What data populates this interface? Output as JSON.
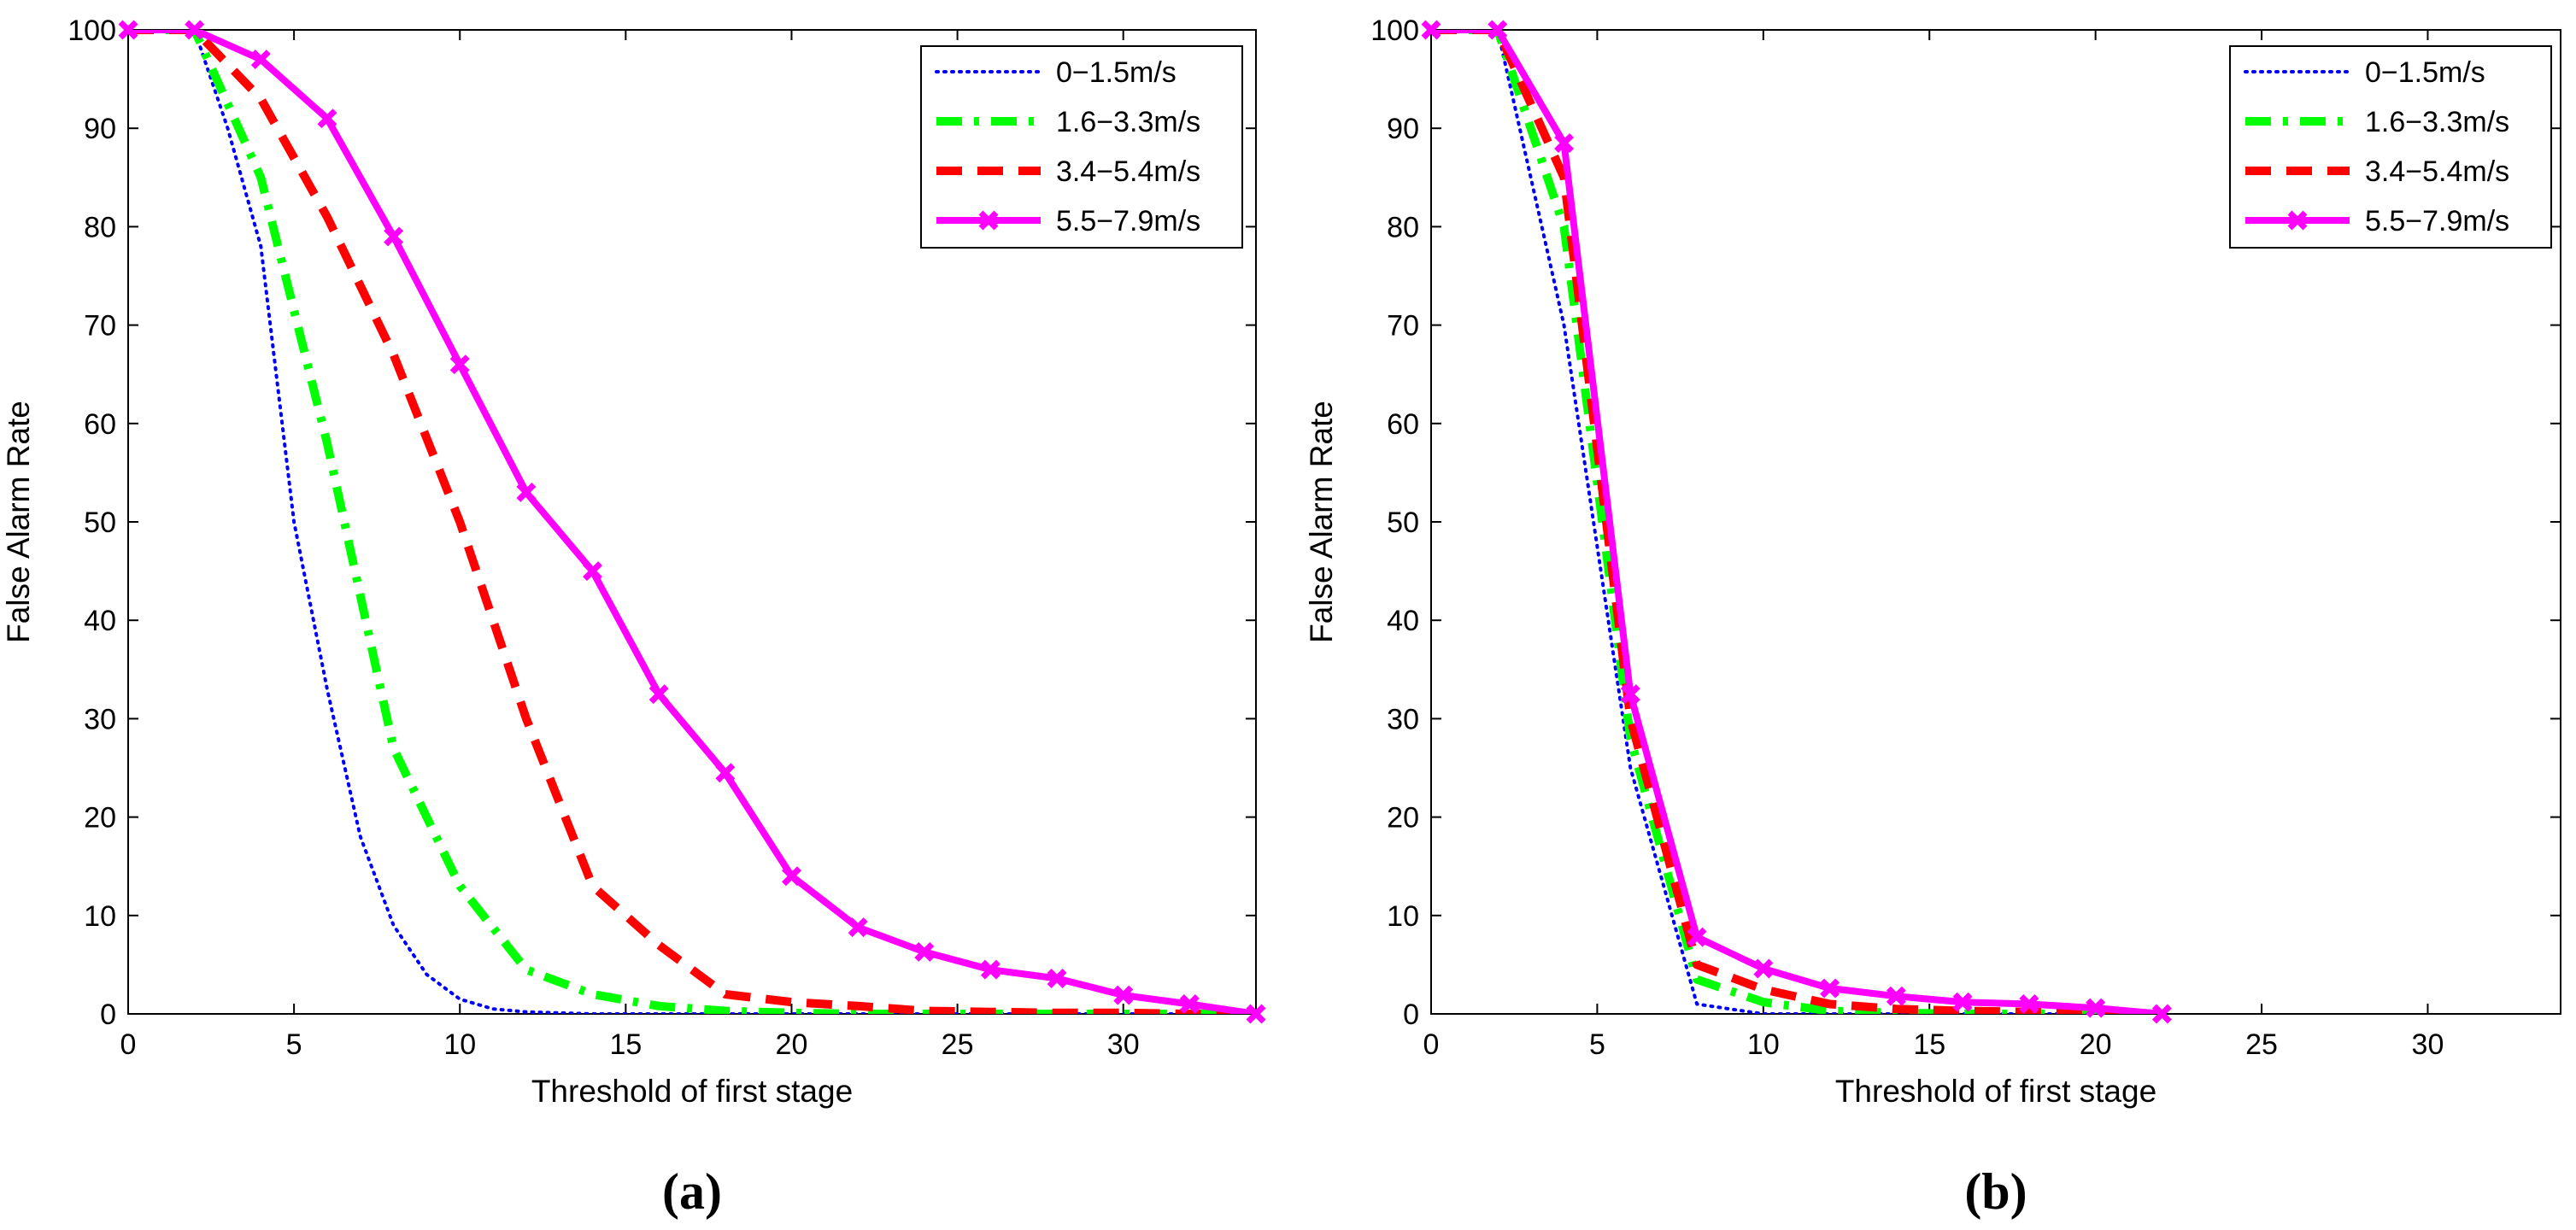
{
  "chart_data": [
    {
      "type": "line",
      "panel_label": "(a)",
      "xlabel": "Threshold of first stage",
      "ylabel": "False Alarm Rate",
      "xlim": [
        0,
        34
      ],
      "ylim": [
        0,
        100
      ],
      "xticks": [
        0,
        5,
        10,
        15,
        20,
        25,
        30
      ],
      "yticks": [
        0,
        10,
        20,
        30,
        40,
        50,
        60,
        70,
        80,
        90,
        100
      ],
      "legend_position": "top-right",
      "series": [
        {
          "name": "0−1.5m/s",
          "style": "dotted",
          "color": "#0000ff",
          "markers": false,
          "x": [
            0,
            2,
            3,
            4,
            5,
            6,
            7,
            8,
            9,
            10,
            11,
            12,
            14,
            34
          ],
          "y": [
            100,
            100,
            90,
            78,
            50,
            33,
            18,
            9,
            4,
            1.5,
            0.5,
            0.2,
            0,
            0
          ]
        },
        {
          "name": "1.6−3.3m/s",
          "style": "dashdot",
          "color": "#00ff00",
          "markers": false,
          "x": [
            0,
            2,
            4,
            6,
            8,
            10,
            12,
            14,
            16,
            18,
            20,
            22,
            24,
            26,
            28,
            30,
            32,
            34
          ],
          "y": [
            100,
            100,
            85,
            58,
            27,
            13,
            4.5,
            2,
            0.8,
            0.3,
            0.1,
            0,
            0,
            0,
            0,
            0,
            0,
            0
          ]
        },
        {
          "name": "3.4−5.4m/s",
          "style": "dashed",
          "color": "#ff0000",
          "markers": false,
          "x": [
            0,
            2,
            4,
            6,
            8,
            10,
            12,
            14,
            16,
            18,
            20,
            22,
            24,
            26,
            28,
            30,
            32,
            34
          ],
          "y": [
            100,
            100,
            93,
            81,
            67,
            50,
            30,
            13,
            7,
            2,
            1.2,
            0.8,
            0.3,
            0.2,
            0.1,
            0.1,
            0,
            0
          ]
        },
        {
          "name": "5.5−7.9m/s",
          "style": "solid",
          "color": "#ff00ff",
          "markers": true,
          "x": [
            0,
            2,
            4,
            6,
            8,
            10,
            12,
            14,
            16,
            18,
            20,
            22,
            24,
            26,
            28,
            30,
            32,
            34
          ],
          "y": [
            100,
            100,
            97,
            91,
            79,
            66,
            53,
            45,
            32.5,
            24.5,
            14,
            8.8,
            6.3,
            4.5,
            3.6,
            1.9,
            1,
            0
          ]
        }
      ]
    },
    {
      "type": "line",
      "panel_label": "(b)",
      "xlabel": "Threshold of first stage",
      "ylabel": "False Alarm Rate",
      "xlim": [
        0,
        34
      ],
      "ylim": [
        0,
        100
      ],
      "xticks": [
        0,
        5,
        10,
        15,
        20,
        25,
        30
      ],
      "yticks": [
        0,
        10,
        20,
        30,
        40,
        50,
        60,
        70,
        80,
        90,
        100
      ],
      "legend_position": "top-right",
      "series": [
        {
          "name": "0−1.5m/s",
          "style": "dotted",
          "color": "#0000ff",
          "markers": false,
          "x": [
            0,
            2,
            4,
            6,
            8,
            10,
            22
          ],
          "y": [
            100,
            100,
            70,
            25,
            1,
            0,
            0
          ]
        },
        {
          "name": "1.6−3.3m/s",
          "style": "dashdot",
          "color": "#00ff00",
          "markers": false,
          "x": [
            0,
            2,
            4,
            6,
            8,
            10,
            12,
            14,
            16,
            18,
            20,
            22
          ],
          "y": [
            100,
            100,
            80,
            28,
            3.5,
            1.2,
            0.3,
            0.1,
            0,
            0,
            0,
            0
          ]
        },
        {
          "name": "3.4−5.4m/s",
          "style": "dashed",
          "color": "#ff0000",
          "markers": false,
          "x": [
            0,
            2,
            4,
            6,
            8,
            10,
            12,
            14,
            16,
            18,
            20,
            22
          ],
          "y": [
            100,
            100,
            85,
            30,
            5,
            2.5,
            1,
            0.5,
            0.3,
            0.2,
            0.1,
            0
          ]
        },
        {
          "name": "5.5−7.9m/s",
          "style": "solid",
          "color": "#ff00ff",
          "markers": true,
          "x": [
            0,
            2,
            4,
            6,
            8,
            10,
            12,
            14,
            16,
            18,
            20,
            22
          ],
          "y": [
            100,
            100,
            88.5,
            32.5,
            7.8,
            4.6,
            2.6,
            1.8,
            1.2,
            1,
            0.6,
            0
          ]
        }
      ]
    }
  ]
}
